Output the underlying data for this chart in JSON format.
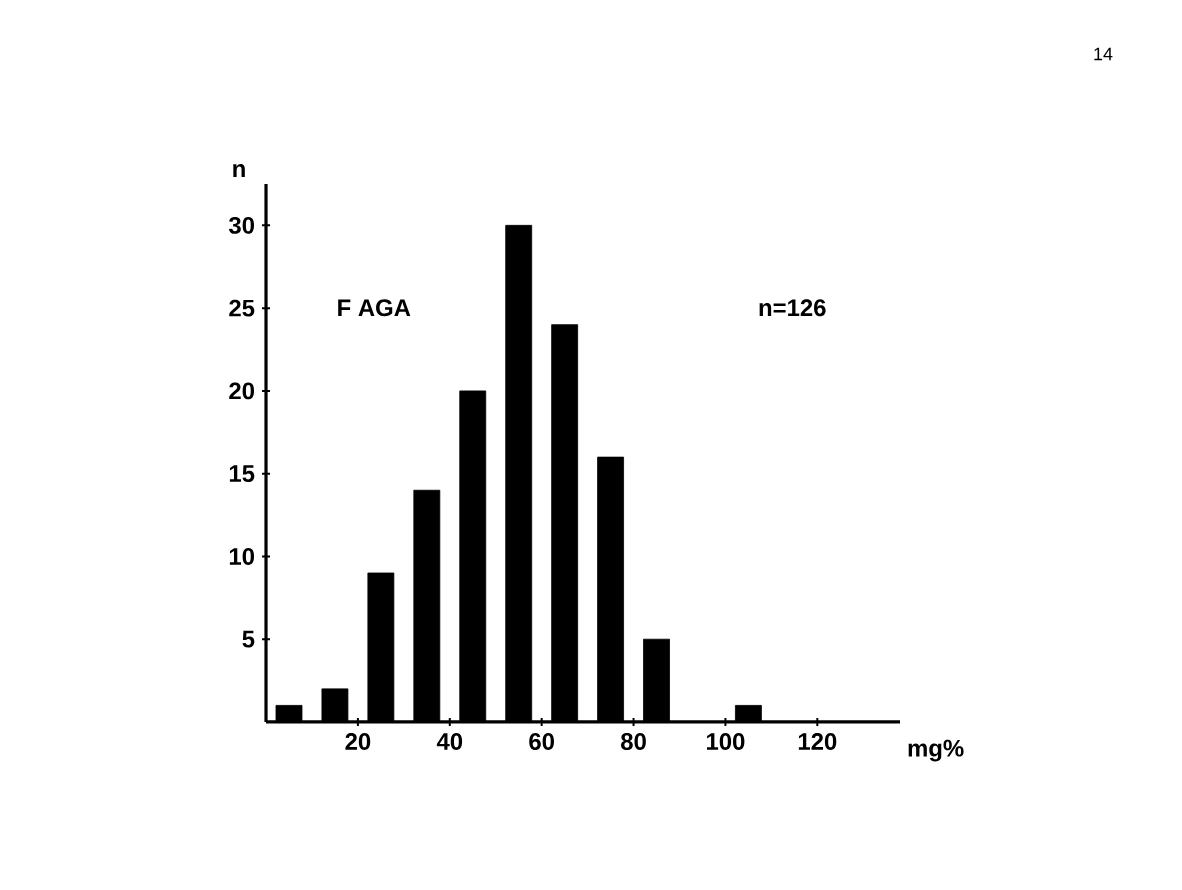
{
  "chart_data": {
    "type": "histogram",
    "ylabel": "n",
    "xlabel": "mg%",
    "bins": [
      0,
      10,
      20,
      30,
      40,
      50,
      60,
      70,
      80,
      90,
      100,
      110
    ],
    "values": [
      1,
      2,
      9,
      14,
      20,
      30,
      24,
      16,
      5,
      0,
      1
    ],
    "color": "#000000",
    "xlim": [
      0,
      138
    ],
    "xticks": [
      20,
      40,
      60,
      80,
      100,
      120
    ],
    "ylim": [
      0,
      32.5
    ],
    "yticks": [
      5,
      10,
      15,
      20,
      25,
      30
    ],
    "annotations": [
      "F AGA",
      "n=126",
      "14"
    ]
  }
}
